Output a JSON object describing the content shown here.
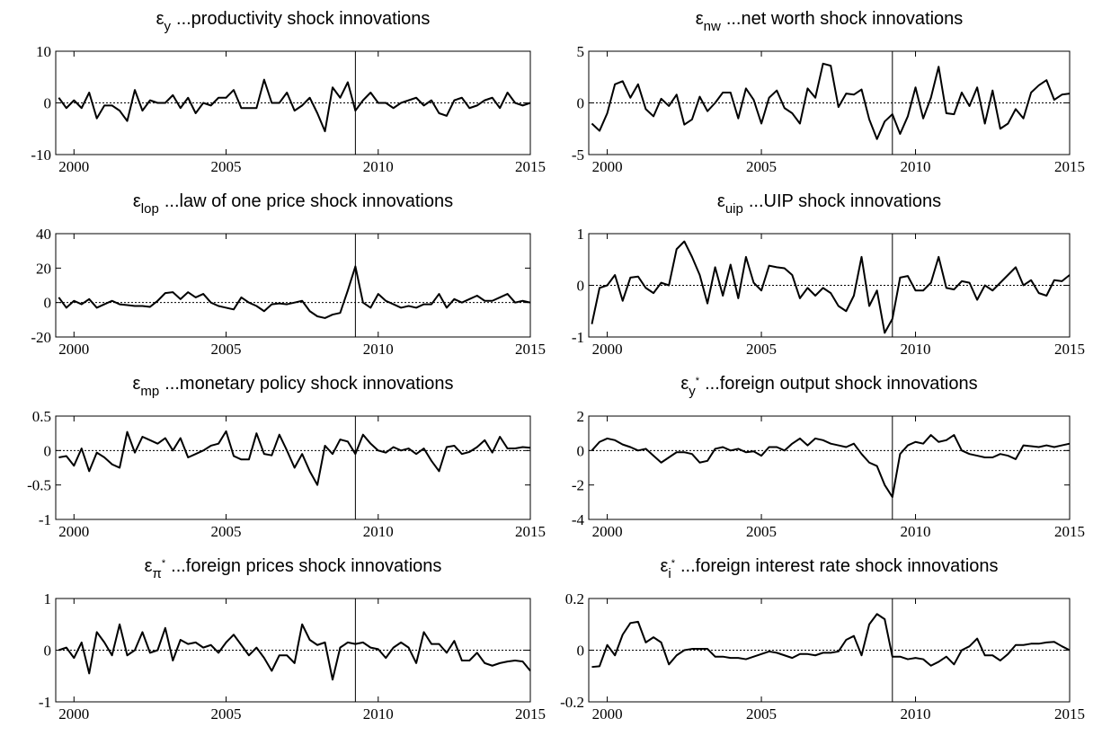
{
  "chart_data": [
    {
      "type": "line",
      "title_symbol": "ε",
      "title_sub": "y",
      "title": "...productivity shock innovations",
      "color": "#000000",
      "xlim": [
        1999.4,
        2015
      ],
      "xticks": [
        2000,
        2005,
        2010,
        2015
      ],
      "ylim": [
        -10,
        10
      ],
      "yticks": [
        -10,
        0,
        10
      ],
      "vline": 2009.25,
      "x": [
        1999.5,
        1999.75,
        2000,
        2000.25,
        2000.5,
        2000.75,
        2001,
        2001.25,
        2001.5,
        2001.75,
        2002,
        2002.25,
        2002.5,
        2002.75,
        2003,
        2003.25,
        2003.5,
        2003.75,
        2004,
        2004.25,
        2004.5,
        2004.75,
        2005,
        2005.25,
        2005.5,
        2005.75,
        2006,
        2006.25,
        2006.5,
        2006.75,
        2007,
        2007.25,
        2007.5,
        2007.75,
        2008,
        2008.25,
        2008.5,
        2008.75,
        2009,
        2009.25,
        2009.5,
        2009.75,
        2010,
        2010.25,
        2010.5,
        2010.75,
        2011,
        2011.25,
        2011.5,
        2011.75,
        2012,
        2012.25,
        2012.5,
        2012.75,
        2013,
        2013.25,
        2013.5,
        2013.75,
        2014,
        2014.25,
        2014.5,
        2014.75,
        2015
      ],
      "values": [
        1,
        -1,
        0.5,
        -1,
        2,
        -3,
        -0.5,
        -0.5,
        -1.5,
        -3.5,
        2.5,
        -1.5,
        0.5,
        0,
        0,
        1.5,
        -1,
        1,
        -2,
        0,
        -0.5,
        1,
        1,
        2.5,
        -1,
        -1,
        -1,
        4.5,
        0,
        0,
        2,
        -1.5,
        -0.5,
        1,
        -2,
        -5.5,
        3,
        1,
        4,
        -1.5,
        0.5,
        2,
        0,
        0,
        -1,
        0,
        0.5,
        1,
        -0.5,
        0.5,
        -2,
        -2.5,
        0.5,
        1,
        -1,
        -0.5,
        0.5,
        1,
        -1,
        2,
        0,
        -0.5,
        0
      ]
    },
    {
      "type": "line",
      "title_symbol": "ε",
      "title_sub": "nw",
      "title": "...net worth shock innovations",
      "color": "#000000",
      "xlim": [
        1999.4,
        2015
      ],
      "xticks": [
        2000,
        2005,
        2010,
        2015
      ],
      "ylim": [
        -5,
        5
      ],
      "yticks": [
        -5,
        0,
        5
      ],
      "vline": 2009.25,
      "x": [
        1999.5,
        1999.75,
        2000,
        2000.25,
        2000.5,
        2000.75,
        2001,
        2001.25,
        2001.5,
        2001.75,
        2002,
        2002.25,
        2002.5,
        2002.75,
        2003,
        2003.25,
        2003.5,
        2003.75,
        2004,
        2004.25,
        2004.5,
        2004.75,
        2005,
        2005.25,
        2005.5,
        2005.75,
        2006,
        2006.25,
        2006.5,
        2006.75,
        2007,
        2007.25,
        2007.5,
        2007.75,
        2008,
        2008.25,
        2008.5,
        2008.75,
        2009,
        2009.25,
        2009.5,
        2009.75,
        2010,
        2010.25,
        2010.5,
        2010.75,
        2011,
        2011.25,
        2011.5,
        2011.75,
        2012,
        2012.25,
        2012.5,
        2012.75,
        2013,
        2013.25,
        2013.5,
        2013.75,
        2014,
        2014.25,
        2014.5,
        2014.75,
        2015
      ],
      "values": [
        -2,
        -2.7,
        -1,
        1.8,
        2.1,
        0.5,
        1.8,
        -0.6,
        -1.3,
        0.4,
        -0.3,
        0.8,
        -2.1,
        -1.6,
        0.6,
        -0.8,
        0,
        1,
        1,
        -1.5,
        1.4,
        0.3,
        -2,
        0.5,
        1.2,
        -0.5,
        -1,
        -2,
        1.4,
        0.5,
        3.8,
        3.6,
        -0.4,
        0.9,
        0.8,
        1.3,
        -1.6,
        -3.5,
        -1.8,
        -1.1,
        -3,
        -1.3,
        1.5,
        -1.5,
        0.5,
        3.5,
        -1,
        -1.1,
        1,
        -0.3,
        1.5,
        -2,
        1.2,
        -2.5,
        -2,
        -0.6,
        -1.5,
        1,
        1.7,
        2.2,
        0.3,
        0.8,
        0.9
      ]
    },
    {
      "type": "line",
      "title_symbol": "ε",
      "title_sub": "lop",
      "title": "...law of one price shock innovations",
      "color": "#000000",
      "xlim": [
        1999.4,
        2015
      ],
      "xticks": [
        2000,
        2005,
        2010,
        2015
      ],
      "ylim": [
        -20,
        40
      ],
      "yticks": [
        -20,
        0,
        20,
        40
      ],
      "vline": 2009.25,
      "x": [
        1999.5,
        1999.75,
        2000,
        2000.25,
        2000.5,
        2000.75,
        2001,
        2001.25,
        2001.5,
        2001.75,
        2002,
        2002.25,
        2002.5,
        2002.75,
        2003,
        2003.25,
        2003.5,
        2003.75,
        2004,
        2004.25,
        2004.5,
        2004.75,
        2005,
        2005.25,
        2005.5,
        2005.75,
        2006,
        2006.25,
        2006.5,
        2006.75,
        2007,
        2007.25,
        2007.5,
        2007.75,
        2008,
        2008.25,
        2008.5,
        2008.75,
        2009,
        2009.25,
        2009.5,
        2009.75,
        2010,
        2010.25,
        2010.5,
        2010.75,
        2011,
        2011.25,
        2011.5,
        2011.75,
        2012,
        2012.25,
        2012.5,
        2012.75,
        2013,
        2013.25,
        2013.5,
        2013.75,
        2014,
        2014.25,
        2014.5,
        2014.75,
        2015
      ],
      "values": [
        3,
        -3,
        1,
        -1,
        2,
        -3,
        -1,
        1,
        -1,
        -1.5,
        -2,
        -2,
        -2.5,
        1,
        5.5,
        6,
        2,
        6,
        3,
        5,
        0,
        -2,
        -3,
        -4,
        3,
        0,
        -2,
        -5,
        -1,
        -0.5,
        -1,
        0,
        1,
        -5,
        -8,
        -9,
        -7,
        -6,
        7,
        21,
        0,
        -3,
        5,
        1,
        -1,
        -3,
        -2,
        -3,
        -1,
        -1,
        5,
        -3,
        2,
        0,
        2,
        4,
        1,
        1,
        3,
        5,
        0,
        1,
        0
      ]
    },
    {
      "type": "line",
      "title_symbol": "ε",
      "title_sub": "uip",
      "title": "...UIP shock innovations",
      "color": "#000000",
      "xlim": [
        1999.4,
        2015
      ],
      "xticks": [
        2000,
        2005,
        2010,
        2015
      ],
      "ylim": [
        -1,
        1
      ],
      "yticks": [
        -1,
        0,
        1
      ],
      "vline": 2009.25,
      "x": [
        1999.5,
        1999.75,
        2000,
        2000.25,
        2000.5,
        2000.75,
        2001,
        2001.25,
        2001.5,
        2001.75,
        2002,
        2002.25,
        2002.5,
        2002.75,
        2003,
        2003.25,
        2003.5,
        2003.75,
        2004,
        2004.25,
        2004.5,
        2004.75,
        2005,
        2005.25,
        2005.5,
        2005.75,
        2006,
        2006.25,
        2006.5,
        2006.75,
        2007,
        2007.25,
        2007.5,
        2007.75,
        2008,
        2008.25,
        2008.5,
        2008.75,
        2009,
        2009.25,
        2009.5,
        2009.75,
        2010,
        2010.25,
        2010.5,
        2010.75,
        2011,
        2011.25,
        2011.5,
        2011.75,
        2012,
        2012.25,
        2012.5,
        2012.75,
        2013,
        2013.25,
        2013.5,
        2013.75,
        2014,
        2014.25,
        2014.5,
        2014.75,
        2015
      ],
      "values": [
        -0.75,
        -0.05,
        0,
        0.2,
        -0.3,
        0.15,
        0.17,
        -0.05,
        -0.15,
        0.05,
        0,
        0.7,
        0.85,
        0.55,
        0.2,
        -0.35,
        0.35,
        -0.2,
        0.4,
        -0.25,
        0.55,
        0.05,
        -0.1,
        0.38,
        0.35,
        0.33,
        0.2,
        -0.25,
        -0.05,
        -0.2,
        -0.05,
        -0.15,
        -0.4,
        -0.5,
        -0.2,
        0.55,
        -0.4,
        -0.1,
        -0.92,
        -0.65,
        0.15,
        0.18,
        -0.1,
        -0.1,
        0.05,
        0.55,
        -0.05,
        -0.08,
        0.08,
        0.05,
        -0.28,
        0,
        -0.1,
        0.05,
        0.2,
        0.35,
        0,
        0.1,
        -0.15,
        -0.2,
        0.1,
        0.08,
        0.2
      ]
    },
    {
      "type": "line",
      "title_symbol": "ε",
      "title_sub": "mp",
      "title": "...monetary policy shock innovations",
      "color": "#000000",
      "xlim": [
        1999.4,
        2015
      ],
      "xticks": [
        2000,
        2005,
        2010,
        2015
      ],
      "ylim": [
        -1,
        0.5
      ],
      "yticks": [
        -1,
        -0.5,
        0,
        0.5
      ],
      "vline": 2009.25,
      "x": [
        1999.5,
        1999.75,
        2000,
        2000.25,
        2000.5,
        2000.75,
        2001,
        2001.25,
        2001.5,
        2001.75,
        2002,
        2002.25,
        2002.5,
        2002.75,
        2003,
        2003.25,
        2003.5,
        2003.75,
        2004,
        2004.25,
        2004.5,
        2004.75,
        2005,
        2005.25,
        2005.5,
        2005.75,
        2006,
        2006.25,
        2006.5,
        2006.75,
        2007,
        2007.25,
        2007.5,
        2007.75,
        2008,
        2008.25,
        2008.5,
        2008.75,
        2009,
        2009.25,
        2009.5,
        2009.75,
        2010,
        2010.25,
        2010.5,
        2010.75,
        2011,
        2011.25,
        2011.5,
        2011.75,
        2012,
        2012.25,
        2012.5,
        2012.75,
        2013,
        2013.25,
        2013.5,
        2013.75,
        2014,
        2014.25,
        2014.5,
        2014.75,
        2015
      ],
      "values": [
        -0.1,
        -0.08,
        -0.22,
        0.03,
        -0.3,
        -0.03,
        -0.1,
        -0.2,
        -0.25,
        0.27,
        -0.03,
        0.2,
        0.15,
        0.1,
        0.18,
        0,
        0.18,
        -0.1,
        -0.05,
        0,
        0.07,
        0.1,
        0.28,
        -0.08,
        -0.13,
        -0.13,
        0.25,
        -0.05,
        -0.07,
        0.23,
        0,
        -0.25,
        -0.05,
        -0.3,
        -0.5,
        0.07,
        -0.05,
        0.16,
        0.13,
        -0.05,
        0.23,
        0.1,
        0,
        -0.03,
        0.05,
        0,
        0.03,
        -0.05,
        0.03,
        -0.15,
        -0.3,
        0.05,
        0.07,
        -0.05,
        -0.02,
        0.05,
        0.15,
        -0.03,
        0.2,
        0.03,
        0.03,
        0.05,
        0.04
      ]
    },
    {
      "type": "line",
      "title_symbol": "ε",
      "title_sub": "y",
      "title_sup": "*",
      "title": "...foreign output shock innovations",
      "color": "#000000",
      "xlim": [
        1999.4,
        2015
      ],
      "xticks": [
        2000,
        2005,
        2010,
        2015
      ],
      "ylim": [
        -4,
        2
      ],
      "yticks": [
        -4,
        -2,
        0,
        2
      ],
      "vline": 2009.25,
      "x": [
        1999.5,
        1999.75,
        2000,
        2000.25,
        2000.5,
        2000.75,
        2001,
        2001.25,
        2001.5,
        2001.75,
        2002,
        2002.25,
        2002.5,
        2002.75,
        2003,
        2003.25,
        2003.5,
        2003.75,
        2004,
        2004.25,
        2004.5,
        2004.75,
        2005,
        2005.25,
        2005.5,
        2005.75,
        2006,
        2006.25,
        2006.5,
        2006.75,
        2007,
        2007.25,
        2007.5,
        2007.75,
        2008,
        2008.25,
        2008.5,
        2008.75,
        2009,
        2009.25,
        2009.5,
        2009.75,
        2010,
        2010.25,
        2010.5,
        2010.75,
        2011,
        2011.25,
        2011.5,
        2011.75,
        2012,
        2012.25,
        2012.5,
        2012.75,
        2013,
        2013.25,
        2013.5,
        2013.75,
        2014,
        2014.25,
        2014.5,
        2014.75,
        2015
      ],
      "values": [
        0,
        0.5,
        0.7,
        0.6,
        0.35,
        0.2,
        0,
        0.1,
        -0.3,
        -0.7,
        -0.4,
        -0.1,
        -0.1,
        -0.2,
        -0.7,
        -0.6,
        0.1,
        0.2,
        0,
        0.1,
        -0.1,
        -0.05,
        -0.3,
        0.2,
        0.2,
        0,
        0.4,
        0.7,
        0.3,
        0.7,
        0.6,
        0.4,
        0.3,
        0.2,
        0.4,
        -0.2,
        -0.7,
        -0.9,
        -2,
        -2.7,
        -0.2,
        0.3,
        0.5,
        0.4,
        0.9,
        0.5,
        0.6,
        0.9,
        0,
        -0.2,
        -0.3,
        -0.4,
        -0.4,
        -0.2,
        -0.3,
        -0.5,
        0.3,
        0.25,
        0.2,
        0.3,
        0.2,
        0.3,
        0.4
      ]
    },
    {
      "type": "line",
      "title_symbol": "ε",
      "title_sub": "π",
      "title_sup": "*",
      "title": "...foreign prices shock innovations",
      "color": "#000000",
      "xlim": [
        1999.4,
        2015
      ],
      "xticks": [
        2000,
        2005,
        2010,
        2015
      ],
      "ylim": [
        -1,
        1
      ],
      "yticks": [
        -1,
        0,
        1
      ],
      "vline": 2009.25,
      "x": [
        1999.5,
        1999.75,
        2000,
        2000.25,
        2000.5,
        2000.75,
        2001,
        2001.25,
        2001.5,
        2001.75,
        2002,
        2002.25,
        2002.5,
        2002.75,
        2003,
        2003.25,
        2003.5,
        2003.75,
        2004,
        2004.25,
        2004.5,
        2004.75,
        2005,
        2005.25,
        2005.5,
        2005.75,
        2006,
        2006.25,
        2006.5,
        2006.75,
        2007,
        2007.25,
        2007.5,
        2007.75,
        2008,
        2008.25,
        2008.5,
        2008.75,
        2009,
        2009.25,
        2009.5,
        2009.75,
        2010,
        2010.25,
        2010.5,
        2010.75,
        2011,
        2011.25,
        2011.5,
        2011.75,
        2012,
        2012.25,
        2012.5,
        2012.75,
        2013,
        2013.25,
        2013.5,
        2013.75,
        2014,
        2014.25,
        2014.5,
        2014.75,
        2015
      ],
      "values": [
        0,
        0.05,
        -0.15,
        0.15,
        -0.45,
        0.35,
        0.15,
        -0.1,
        0.5,
        -0.1,
        0,
        0.35,
        -0.05,
        0,
        0.43,
        -0.2,
        0.2,
        0.12,
        0.15,
        0.05,
        0.1,
        -0.05,
        0.15,
        0.3,
        0.1,
        -0.1,
        0.05,
        -0.15,
        -0.4,
        -0.1,
        -0.1,
        -0.25,
        0.5,
        0.2,
        0.1,
        0.15,
        -0.57,
        0.05,
        0.15,
        0.12,
        0.15,
        0.05,
        0.02,
        -0.15,
        0.05,
        0.15,
        0.05,
        -0.25,
        0.35,
        0.12,
        0.12,
        -0.05,
        0.18,
        -0.2,
        -0.2,
        -0.05,
        -0.25,
        -0.3,
        -0.25,
        -0.22,
        -0.2,
        -0.22,
        -0.4
      ]
    },
    {
      "type": "line",
      "title_symbol": "ε",
      "title_sub": "i",
      "title_sup": "*",
      "title": "...foreign interest rate shock innovations",
      "color": "#000000",
      "xlim": [
        1999.4,
        2015
      ],
      "xticks": [
        2000,
        2005,
        2010,
        2015
      ],
      "ylim": [
        -0.2,
        0.2
      ],
      "yticks": [
        -0.2,
        0,
        0.2
      ],
      "vline": 2009.25,
      "x": [
        1999.5,
        1999.75,
        2000,
        2000.25,
        2000.5,
        2000.75,
        2001,
        2001.25,
        2001.5,
        2001.75,
        2002,
        2002.25,
        2002.5,
        2002.75,
        2003,
        2003.25,
        2003.5,
        2003.75,
        2004,
        2004.25,
        2004.5,
        2004.75,
        2005,
        2005.25,
        2005.5,
        2005.75,
        2006,
        2006.25,
        2006.5,
        2006.75,
        2007,
        2007.25,
        2007.5,
        2007.75,
        2008,
        2008.25,
        2008.5,
        2008.75,
        2009,
        2009.25,
        2009.5,
        2009.75,
        2010,
        2010.25,
        2010.5,
        2010.75,
        2011,
        2011.25,
        2011.5,
        2011.75,
        2012,
        2012.25,
        2012.5,
        2012.75,
        2013,
        2013.25,
        2013.5,
        2013.75,
        2014,
        2014.25,
        2014.5,
        2014.75,
        2015
      ],
      "values": [
        -0.065,
        -0.062,
        0.02,
        -0.02,
        0.06,
        0.105,
        0.11,
        0.03,
        0.05,
        0.03,
        -0.055,
        -0.02,
        0,
        0.005,
        0.005,
        0.005,
        -0.025,
        -0.025,
        -0.03,
        -0.03,
        -0.035,
        -0.025,
        -0.015,
        -0.005,
        -0.01,
        -0.02,
        -0.03,
        -0.015,
        -0.015,
        -0.02,
        -0.01,
        -0.01,
        -0.005,
        0.04,
        0.055,
        -0.02,
        0.1,
        0.14,
        0.12,
        -0.025,
        -0.025,
        -0.035,
        -0.03,
        -0.035,
        -0.06,
        -0.045,
        -0.025,
        -0.055,
        0,
        0.015,
        0.045,
        -0.02,
        -0.02,
        -0.04,
        -0.015,
        0.02,
        0.02,
        0.025,
        0.025,
        0.03,
        0.032,
        0.015,
        0
      ]
    }
  ]
}
